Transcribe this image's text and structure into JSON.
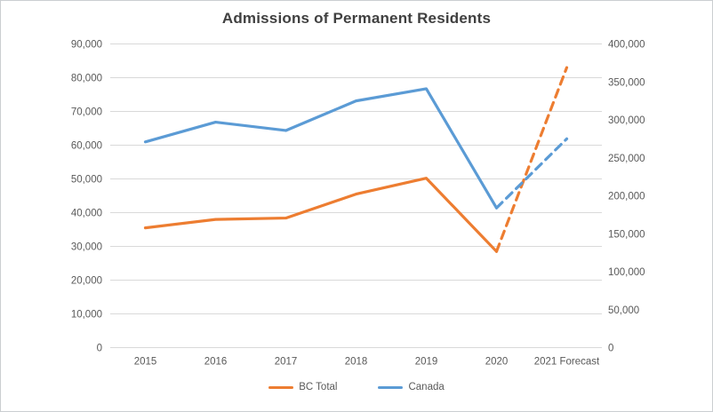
{
  "chart": {
    "title": "Admissions of Permanent Residents"
  },
  "chart_data": {
    "type": "line",
    "title": "Admissions of Permanent Residents",
    "categories": [
      "2015",
      "2016",
      "2017",
      "2018",
      "2019",
      "2020",
      "2021 Forecast"
    ],
    "series": [
      {
        "name": "BC Total",
        "axis": "left",
        "color": "#ED7D31",
        "values": [
          35500,
          38000,
          38400,
          45500,
          50200,
          28500,
          83000
        ],
        "dashed_from_index": 5
      },
      {
        "name": "Canada",
        "axis": "right",
        "color": "#5B9BD5",
        "values": [
          271000,
          297000,
          286000,
          325000,
          341000,
          184000,
          275000
        ],
        "dashed_from_index": 5
      }
    ],
    "left_axis": {
      "min": 0,
      "max": 90000,
      "step": 10000
    },
    "right_axis": {
      "min": 0,
      "max": 400000,
      "step": 50000
    },
    "grid": "horizontal",
    "legend_position": "bottom",
    "gridline_color": "#D9D9D9",
    "axis_text_color": "#595959",
    "title_color": "#404040"
  }
}
